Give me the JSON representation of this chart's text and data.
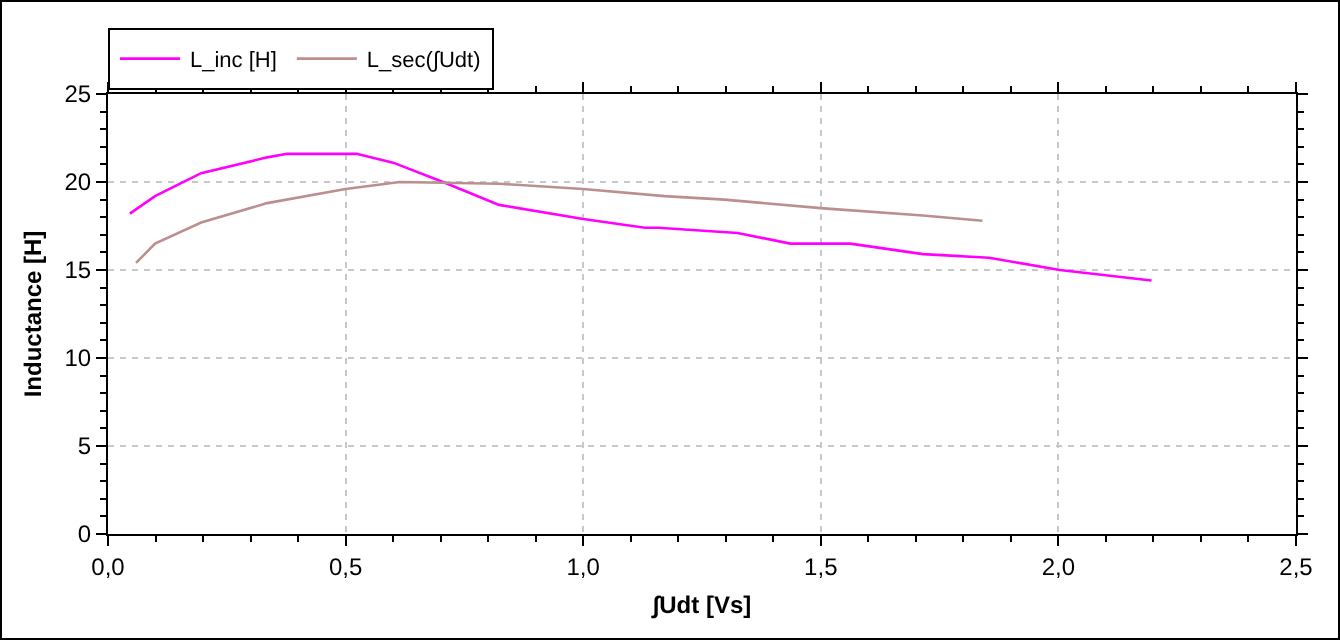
{
  "chart_data": {
    "type": "line",
    "xlabel": "∫Udt [Vs]",
    "ylabel": "Inductance [H]",
    "xlim": [
      0,
      2.5
    ],
    "xticks": [
      {
        "value": 0,
        "label": "0,0"
      },
      {
        "value": 0.5,
        "label": "0,5"
      },
      {
        "value": 1,
        "label": "1,0"
      },
      {
        "value": 1.5,
        "label": "1,5"
      },
      {
        "value": 2,
        "label": "2,0"
      },
      {
        "value": 2.5,
        "label": "2,5"
      }
    ],
    "ylim": [
      0,
      25
    ],
    "yticks": [
      0,
      5,
      10,
      15,
      20,
      25
    ],
    "grid": true,
    "legend": "top left",
    "line_style": "solid",
    "marker": "none",
    "series": [
      {
        "name": "L_inc [H]",
        "color": "#ff00ff",
        "x": [
          0.046,
          0.099,
          0.196,
          0.335,
          0.377,
          0.523,
          0.6,
          0.705,
          0.823,
          1.0,
          1.13,
          1.158,
          1.325,
          1.436,
          1.562,
          1.715,
          1.854,
          2.003,
          2.196
        ],
        "values": [
          18.2,
          19.2,
          20.5,
          21.4,
          21.6,
          21.6,
          21.1,
          20.0,
          18.7,
          17.9,
          17.4,
          17.4,
          17.1,
          16.5,
          16.5,
          15.9,
          15.7,
          15.0,
          14.4
        ]
      },
      {
        "name": "L_sec(∫Udt)",
        "color": "#bc8f8f",
        "x": [
          0.059,
          0.099,
          0.196,
          0.335,
          0.5,
          0.614,
          0.823,
          1.0,
          1.171,
          1.297,
          1.506,
          1.715,
          1.84
        ],
        "values": [
          15.4,
          16.5,
          17.7,
          18.8,
          19.6,
          20.0,
          19.9,
          19.6,
          19.2,
          19.0,
          18.5,
          18.1,
          17.8
        ]
      }
    ]
  }
}
